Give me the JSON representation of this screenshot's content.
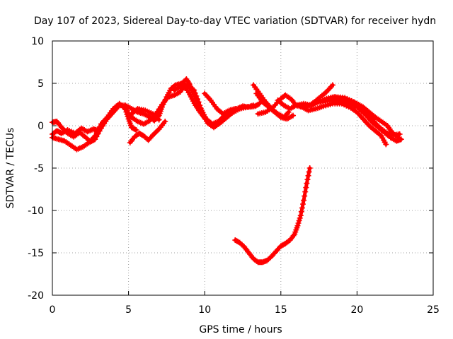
{
  "chart_data": {
    "type": "scatter",
    "title": "Day 107 of 2023, Sidereal Day-to-day VTEC variation (SDTVAR) for receiver hydn",
    "xlabel": "GPS time / hours",
    "ylabel": "SDTVAR / TECUs",
    "xlim": [
      0,
      25
    ],
    "ylim": [
      -20,
      10
    ],
    "xticks": [
      0,
      5,
      10,
      15,
      20,
      25
    ],
    "yticks": [
      -20,
      -15,
      -10,
      -5,
      0,
      5,
      10
    ],
    "xtick_labels": [
      "0",
      "5",
      "10",
      "15",
      "20",
      "25"
    ],
    "ytick_labels": [
      "-20",
      "-15",
      "-10",
      "-5",
      "0",
      "5",
      "10"
    ],
    "grid": true,
    "marker": "plus",
    "color": "#ff0000",
    "series": [
      {
        "name": "track-1",
        "points": [
          [
            0.0,
            0.4
          ],
          [
            0.3,
            0.5
          ],
          [
            0.6,
            -0.2
          ],
          [
            1.0,
            -0.9
          ],
          [
            1.4,
            -1.3
          ],
          [
            1.8,
            -0.8
          ],
          [
            2.2,
            -1.4
          ],
          [
            2.5,
            -1.9
          ],
          [
            2.8,
            -1.6
          ],
          [
            3.2,
            -0.3
          ],
          [
            3.6,
            0.8
          ],
          [
            4.0,
            1.6
          ],
          [
            4.4,
            2.4
          ],
          [
            4.8,
            2.4
          ],
          [
            5.2,
            2.0
          ],
          [
            5.6,
            1.6
          ],
          [
            6.0,
            1.4
          ],
          [
            6.4,
            1.0
          ],
          [
            6.7,
            0.6
          ],
          [
            7.0,
            1.2
          ],
          [
            7.2,
            2.2
          ],
          [
            7.5,
            3.4
          ],
          [
            7.8,
            4.4
          ],
          [
            8.1,
            4.8
          ],
          [
            8.5,
            5.0
          ],
          [
            8.8,
            5.5
          ],
          [
            9.0,
            4.9
          ],
          [
            9.2,
            4.0
          ],
          [
            9.5,
            3.0
          ],
          [
            9.8,
            1.8
          ],
          [
            10.1,
            0.8
          ],
          [
            10.5,
            0.2
          ],
          [
            10.9,
            0.5
          ],
          [
            11.3,
            1.2
          ],
          [
            11.7,
            1.6
          ],
          [
            12.1,
            2.0
          ],
          [
            12.5,
            2.3
          ],
          [
            12.9,
            2.2
          ],
          [
            13.3,
            2.3
          ],
          [
            13.6,
            2.6
          ]
        ]
      },
      {
        "name": "track-2",
        "points": [
          [
            0.0,
            -1.4
          ],
          [
            0.4,
            -1.6
          ],
          [
            0.8,
            -1.8
          ],
          [
            1.2,
            -2.3
          ],
          [
            1.6,
            -2.8
          ],
          [
            2.0,
            -2.5
          ],
          [
            2.4,
            -2.0
          ],
          [
            2.8,
            -1.2
          ],
          [
            3.2,
            0.2
          ],
          [
            3.6,
            1.0
          ],
          [
            4.0,
            2.0
          ],
          [
            4.4,
            2.6
          ],
          [
            4.8,
            2.0
          ],
          [
            5.2,
            1.0
          ],
          [
            5.6,
            0.5
          ],
          [
            6.0,
            0.2
          ],
          [
            6.4,
            0.6
          ],
          [
            6.8,
            1.4
          ],
          [
            7.2,
            2.5
          ],
          [
            7.6,
            3.4
          ],
          [
            8.0,
            3.6
          ],
          [
            8.4,
            4.0
          ],
          [
            8.7,
            4.8
          ],
          [
            9.0,
            4.6
          ],
          [
            9.3,
            4.2
          ],
          [
            9.6,
            2.8
          ],
          [
            9.9,
            1.2
          ],
          [
            10.2,
            0.3
          ],
          [
            10.6,
            -0.2
          ],
          [
            11.0,
            0.3
          ],
          [
            11.4,
            0.9
          ],
          [
            11.8,
            1.5
          ],
          [
            12.3,
            2.0
          ],
          [
            12.8,
            2.2
          ],
          [
            13.2,
            2.4
          ]
        ]
      },
      {
        "name": "track-3",
        "points": [
          [
            0.0,
            -1.0
          ],
          [
            0.3,
            -0.6
          ],
          [
            0.6,
            -0.9
          ],
          [
            1.0,
            -0.5
          ],
          [
            1.5,
            -0.9
          ],
          [
            1.9,
            -0.3
          ],
          [
            2.3,
            -0.7
          ],
          [
            2.7,
            -0.4
          ],
          [
            3.0,
            -0.6
          ]
        ]
      },
      {
        "name": "track-4",
        "points": [
          [
            4.8,
            1.9
          ],
          [
            5.0,
            0.8
          ],
          [
            5.2,
            -0.2
          ],
          [
            5.5,
            -0.5
          ]
        ]
      },
      {
        "name": "track-5",
        "points": [
          [
            5.2,
            1.4
          ],
          [
            5.6,
            2.0
          ],
          [
            6.1,
            1.8
          ],
          [
            6.6,
            1.4
          ],
          [
            7.0,
            0.7
          ]
        ]
      },
      {
        "name": "track-6",
        "points": [
          [
            5.1,
            -2.0
          ],
          [
            5.4,
            -1.3
          ],
          [
            5.7,
            -0.9
          ],
          [
            6.0,
            -1.2
          ],
          [
            6.3,
            -1.7
          ],
          [
            6.6,
            -1.1
          ],
          [
            7.0,
            -0.4
          ],
          [
            7.4,
            0.5
          ]
        ]
      },
      {
        "name": "track-7",
        "points": [
          [
            8.0,
            4.2
          ],
          [
            8.4,
            4.6
          ],
          [
            8.8,
            4.4
          ],
          [
            9.1,
            3.4
          ],
          [
            9.4,
            2.4
          ],
          [
            9.7,
            1.6
          ],
          [
            10.0,
            0.9
          ],
          [
            10.3,
            0.4
          ]
        ]
      },
      {
        "name": "track-8",
        "points": [
          [
            10.0,
            3.8
          ],
          [
            10.4,
            3.0
          ],
          [
            10.8,
            2.0
          ],
          [
            11.2,
            1.4
          ],
          [
            11.6,
            1.8
          ],
          [
            12.0,
            2.0
          ]
        ]
      },
      {
        "name": "track-9",
        "points": [
          [
            13.2,
            4.8
          ],
          [
            13.6,
            3.8
          ],
          [
            14.0,
            2.8
          ],
          [
            14.4,
            2.0
          ],
          [
            14.8,
            1.4
          ],
          [
            15.2,
            1.0
          ],
          [
            15.5,
            1.6
          ]
        ]
      },
      {
        "name": "track-10",
        "points": [
          [
            13.4,
            3.8
          ],
          [
            13.8,
            2.8
          ],
          [
            14.2,
            2.2
          ],
          [
            14.6,
            1.6
          ],
          [
            15.0,
            1.0
          ],
          [
            15.4,
            0.8
          ],
          [
            15.8,
            1.2
          ]
        ]
      },
      {
        "name": "track-11",
        "points": [
          [
            13.5,
            1.4
          ],
          [
            14.0,
            1.6
          ],
          [
            14.5,
            2.2
          ],
          [
            15.0,
            3.2
          ],
          [
            15.3,
            3.6
          ],
          [
            15.7,
            3.1
          ],
          [
            16.0,
            2.4
          ],
          [
            16.4,
            2.2
          ],
          [
            16.8,
            2.3
          ],
          [
            17.2,
            2.8
          ],
          [
            17.6,
            3.4
          ],
          [
            18.0,
            4.0
          ],
          [
            18.4,
            4.8
          ]
        ]
      },
      {
        "name": "track-12",
        "points": [
          [
            14.8,
            3.0
          ],
          [
            15.2,
            2.4
          ],
          [
            15.6,
            2.0
          ],
          [
            16.0,
            2.4
          ],
          [
            16.5,
            2.6
          ],
          [
            17.0,
            2.4
          ],
          [
            17.5,
            2.8
          ],
          [
            18.0,
            3.2
          ],
          [
            18.5,
            3.4
          ],
          [
            19.0,
            3.2
          ],
          [
            19.5,
            3.0
          ],
          [
            20.0,
            2.6
          ],
          [
            20.4,
            2.2
          ],
          [
            20.8,
            1.6
          ],
          [
            21.2,
            1.0
          ],
          [
            21.6,
            0.5
          ],
          [
            22.0,
            0.0
          ],
          [
            22.3,
            -0.8
          ],
          [
            22.7,
            -1.4
          ]
        ]
      },
      {
        "name": "track-13",
        "points": [
          [
            16.4,
            2.2
          ],
          [
            16.8,
            1.8
          ],
          [
            17.3,
            2.0
          ],
          [
            17.8,
            2.3
          ],
          [
            18.4,
            2.6
          ],
          [
            19.0,
            2.6
          ],
          [
            19.6,
            2.1
          ],
          [
            20.0,
            1.6
          ],
          [
            20.4,
            0.8
          ],
          [
            20.8,
            0.0
          ],
          [
            21.2,
            -0.6
          ],
          [
            21.6,
            -1.2
          ],
          [
            21.9,
            -2.2
          ]
        ]
      },
      {
        "name": "track-14",
        "points": [
          [
            17.6,
            2.8
          ],
          [
            18.2,
            3.0
          ],
          [
            18.8,
            3.0
          ],
          [
            19.4,
            2.7
          ],
          [
            20.0,
            2.2
          ],
          [
            20.6,
            1.2
          ],
          [
            21.0,
            0.4
          ],
          [
            21.4,
            -0.2
          ],
          [
            21.8,
            -0.8
          ],
          [
            22.2,
            -1.4
          ],
          [
            22.6,
            -1.8
          ],
          [
            22.9,
            -1.6
          ]
        ]
      },
      {
        "name": "track-15",
        "points": [
          [
            18.6,
            3.4
          ],
          [
            19.2,
            3.3
          ],
          [
            19.8,
            2.8
          ],
          [
            20.4,
            2.0
          ],
          [
            20.8,
            1.2
          ],
          [
            21.2,
            0.3
          ],
          [
            21.6,
            -0.4
          ],
          [
            22.0,
            -0.9
          ],
          [
            22.4,
            -1.1
          ],
          [
            22.8,
            -1.0
          ]
        ]
      },
      {
        "name": "track-16",
        "points": [
          [
            12.0,
            -13.5
          ],
          [
            12.3,
            -13.8
          ],
          [
            12.6,
            -14.3
          ],
          [
            12.9,
            -15.0
          ],
          [
            13.2,
            -15.7
          ],
          [
            13.5,
            -16.1
          ],
          [
            13.8,
            -16.1
          ],
          [
            14.1,
            -15.9
          ],
          [
            14.4,
            -15.4
          ],
          [
            14.7,
            -14.8
          ],
          [
            15.0,
            -14.2
          ],
          [
            15.3,
            -13.9
          ],
          [
            15.6,
            -13.5
          ],
          [
            15.9,
            -12.8
          ],
          [
            16.1,
            -11.8
          ],
          [
            16.3,
            -10.6
          ],
          [
            16.5,
            -8.8
          ],
          [
            16.7,
            -6.8
          ],
          [
            16.9,
            -5.0
          ]
        ]
      }
    ]
  }
}
